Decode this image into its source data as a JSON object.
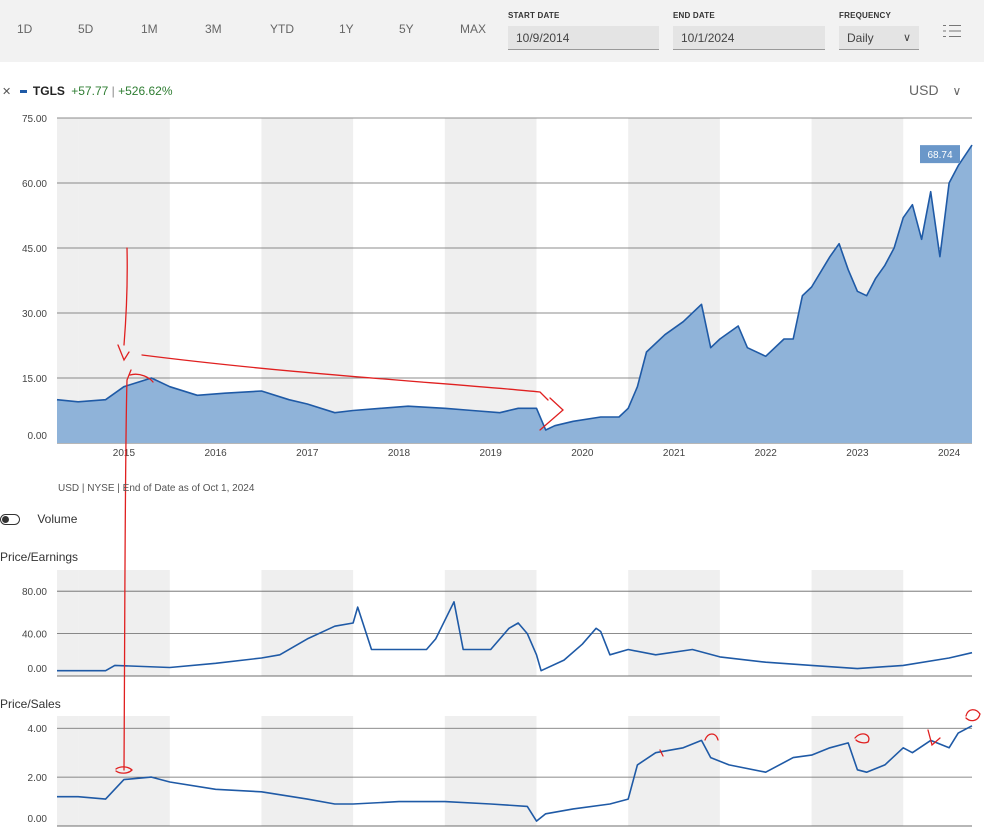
{
  "toolbar": {
    "ranges": [
      "1D",
      "5D",
      "1M",
      "3M",
      "YTD",
      "1Y",
      "5Y",
      "MAX"
    ],
    "start_label": "START DATE",
    "start_value": "10/9/2014",
    "end_label": "END DATE",
    "end_value": "10/1/2024",
    "freq_label": "FREQUENCY",
    "freq_value": "Daily",
    "freq_chevron": "∨"
  },
  "legend": {
    "close": "✕",
    "ticker": "TGLS",
    "change": "+57.77",
    "sep": "|",
    "pct": "+526.62%"
  },
  "currency": "USD",
  "currency_chevron": "∨",
  "footnote": "USD | NYSE | End of Date as of Oct 1, 2024",
  "volume_label": "Volume",
  "colors": {
    "line": "#1f5aa6",
    "fill": "#8fb3d9",
    "band": "#efefef",
    "positive": "#2e7d32",
    "annotation": "#e02020"
  },
  "chart_data": [
    {
      "type": "area",
      "title": "",
      "xlabel": "",
      "ylabel": "",
      "x_ticks": [
        "2015",
        "2016",
        "2017",
        "2018",
        "2019",
        "2020",
        "2021",
        "2022",
        "2023",
        "2024"
      ],
      "y_ticks": [
        "75.00",
        "60.00",
        "45.00",
        "30.00",
        "15.00",
        "0.00"
      ],
      "ylim": [
        0,
        75
      ],
      "last_value_label": "68.74",
      "series": [
        {
          "x": [
            2014.77,
            2015.0,
            2015.3,
            2015.5,
            2015.8,
            2016.0,
            2016.3,
            2016.6,
            2017.0,
            2017.3,
            2017.5,
            2017.8,
            2018.0,
            2018.3,
            2018.6,
            2019.0,
            2019.3,
            2019.6,
            2019.8,
            2020.0,
            2020.1,
            2020.2,
            2020.4,
            2020.7,
            2020.9,
            2021.0,
            2021.1,
            2021.2,
            2021.4,
            2021.6,
            2021.8,
            2021.9,
            2022.0,
            2022.2,
            2022.3,
            2022.5,
            2022.7,
            2022.8,
            2022.9,
            2023.0,
            2023.2,
            2023.3,
            2023.4,
            2023.5,
            2023.6,
            2023.7,
            2023.8,
            2023.9,
            2024.0,
            2024.1,
            2024.2,
            2024.3,
            2024.4,
            2024.5,
            2024.6,
            2024.75
          ],
          "y": [
            10,
            9.5,
            10,
            13,
            15,
            13,
            11,
            11.5,
            12,
            10,
            9,
            7,
            7.5,
            8,
            8.5,
            8,
            7.5,
            7,
            8,
            8,
            3,
            4,
            5,
            6,
            6,
            8,
            13,
            21,
            25,
            28,
            32,
            22,
            24,
            27,
            22,
            20,
            24,
            24,
            34,
            36,
            43,
            46,
            40,
            35,
            34,
            38,
            41,
            45,
            52,
            55,
            47,
            58,
            43,
            60,
            64,
            68.74
          ]
        }
      ]
    },
    {
      "type": "line",
      "title": "Price/Earnings",
      "y_ticks": [
        "80.00",
        "40.00",
        "0.00"
      ],
      "ylim": [
        0,
        100
      ],
      "series": [
        {
          "x": [
            2014.77,
            2015.3,
            2015.4,
            2016.0,
            2016.5,
            2017.0,
            2017.2,
            2017.5,
            2017.8,
            2018.0,
            2018.05,
            2018.2,
            2018.6,
            2018.8,
            2018.9,
            2019.1,
            2019.2,
            2019.5,
            2019.7,
            2019.8,
            2019.9,
            2020.0,
            2020.05,
            2020.3,
            2020.5,
            2020.65,
            2020.7,
            2020.8,
            2021.0,
            2021.3,
            2021.7,
            2022.0,
            2022.5,
            2023.0,
            2023.5,
            2024.0,
            2024.5,
            2024.75
          ],
          "y": [
            5,
            5,
            10,
            8,
            12,
            17,
            20,
            35,
            47,
            50,
            65,
            25,
            25,
            25,
            35,
            70,
            25,
            25,
            45,
            50,
            40,
            20,
            5,
            15,
            30,
            45,
            42,
            20,
            25,
            20,
            25,
            18,
            13,
            10,
            7,
            10,
            17,
            22
          ]
        }
      ]
    },
    {
      "type": "line",
      "title": "Price/Sales",
      "y_ticks": [
        "4.00",
        "2.00",
        "0.00"
      ],
      "ylim": [
        0,
        4.5
      ],
      "series": [
        {
          "x": [
            2014.77,
            2015.0,
            2015.3,
            2015.5,
            2015.8,
            2016.0,
            2016.5,
            2017.0,
            2017.5,
            2017.8,
            2018.0,
            2018.5,
            2019.0,
            2019.5,
            2019.9,
            2020.0,
            2020.1,
            2020.4,
            2020.8,
            2021.0,
            2021.1,
            2021.3,
            2021.6,
            2021.8,
            2021.9,
            2022.1,
            2022.5,
            2022.8,
            2023.0,
            2023.2,
            2023.4,
            2023.5,
            2023.6,
            2023.8,
            2024.0,
            2024.1,
            2024.3,
            2024.5,
            2024.6,
            2024.75
          ],
          "y": [
            1.2,
            1.2,
            1.1,
            1.9,
            2.0,
            1.8,
            1.5,
            1.4,
            1.1,
            0.9,
            0.9,
            1.0,
            1.0,
            0.9,
            0.8,
            0.2,
            0.5,
            0.7,
            0.9,
            1.1,
            2.5,
            3.0,
            3.2,
            3.5,
            2.8,
            2.5,
            2.2,
            2.8,
            2.9,
            3.2,
            3.4,
            2.3,
            2.2,
            2.5,
            3.2,
            3.0,
            3.5,
            3.2,
            3.8,
            4.1
          ]
        }
      ]
    }
  ]
}
